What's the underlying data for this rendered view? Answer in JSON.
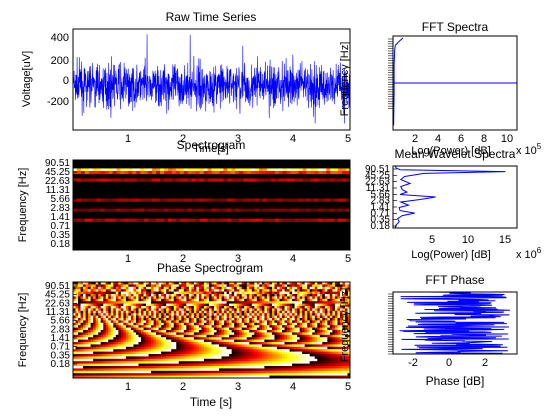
{
  "figure": {
    "panels": {
      "raw": {
        "title": "Raw Time Series",
        "xlabel": "Time[s]",
        "ylabel": "Voltage[uV]",
        "xticks": [
          "1",
          "2",
          "3",
          "4",
          "5"
        ],
        "yticks": [
          "400",
          "200",
          "0",
          "-200"
        ]
      },
      "fft": {
        "title": "FFT Spectra",
        "xlabel": "Log(Power) [dB]",
        "ylabel": "Frequency [Hz]",
        "xticks": [
          "2",
          "4",
          "6",
          "8",
          "10"
        ],
        "exponent": "x 10",
        "exponent_power": "5"
      },
      "spec": {
        "title": "Spectrogram",
        "xlabel": "Time [s]",
        "ylabel": "Frequency [Hz]",
        "xticks": [
          "1",
          "2",
          "3",
          "4",
          "5"
        ],
        "yticks": [
          "90.51",
          "45.25",
          "22.63",
          "11.31",
          "5.66",
          "2.83",
          "1.41",
          "0.71",
          "0.35",
          "0.18"
        ]
      },
      "mwave": {
        "title": "Mean Wavelet Spectra",
        "xlabel": "Log(Power) [dB]",
        "xticks": [
          "5",
          "10",
          "15"
        ],
        "exponent": "x 10",
        "exponent_power": "6",
        "yticks": [
          "90.51",
          "45.25",
          "22.63",
          "11.31",
          "5.66",
          "2.83",
          "1.41",
          "0.71",
          "0.35",
          "0.18"
        ]
      },
      "phase": {
        "title": "Phase Spectrogram",
        "xlabel": "Time [s]",
        "ylabel": "Frequency [Hz]",
        "xticks": [
          "1",
          "2",
          "3",
          "4",
          "5"
        ],
        "yticks": [
          "90.51",
          "45.25",
          "22.63",
          "11.31",
          "5.66",
          "2.83",
          "1.41",
          "0.71",
          "0.35",
          "0.18"
        ]
      },
      "fftphase": {
        "title": "FFT Phase",
        "xlabel": "Phase [dB]",
        "ylabel": "Frequency [Hz]",
        "xticks": [
          "-2",
          "0",
          "2"
        ]
      }
    }
  },
  "chart_data": [
    {
      "type": "line",
      "title": "Raw Time Series",
      "xlabel": "Time[s]",
      "ylabel": "Voltage[uV]",
      "xlim": [
        0,
        5
      ],
      "ylim": [
        -350,
        450
      ],
      "x_ticks": [
        1,
        2,
        3,
        4,
        5
      ],
      "y_ticks": [
        -200,
        0,
        200,
        400
      ],
      "series_color": "#0000ff",
      "signal": {
        "mean": 0,
        "typical_range": [
          -250,
          300
        ],
        "peak_max": 420,
        "peak_min": -300,
        "samples": 1280
      }
    },
    {
      "type": "line",
      "title": "FFT Spectra",
      "xlabel": "Log(Power) [dB]",
      "ylabel": "Frequency [Hz]",
      "xlim": [
        0,
        11
      ],
      "x_ticks": [
        2,
        4,
        6,
        8,
        10
      ],
      "x_exponent": 5,
      "series_color": "#0000ff",
      "profile": [
        [
          0.9,
          0.02
        ],
        [
          0.6,
          0.05
        ],
        [
          0.2,
          0.1
        ],
        [
          0.15,
          0.15
        ],
        [
          0.1,
          0.3
        ],
        [
          0.1,
          0.6
        ],
        [
          0.05,
          0.95
        ]
      ]
    },
    {
      "type": "heatmap",
      "title": "Spectrogram",
      "xlabel": "Time [s]",
      "ylabel": "Frequency [Hz]",
      "xlim": [
        0,
        5
      ],
      "x_ticks": [
        1,
        2,
        3,
        4,
        5
      ],
      "y_ticks": [
        90.51,
        45.25,
        22.63,
        11.31,
        5.66,
        2.83,
        1.41,
        0.71,
        0.35,
        0.18
      ],
      "colormap": "hot",
      "bands": [
        {
          "frequency_hz": 45.25,
          "relative_power": 1.0
        },
        {
          "frequency_hz": 38,
          "relative_power": 0.55
        },
        {
          "frequency_hz": 22.63,
          "relative_power": 0.35
        },
        {
          "frequency_hz": 5.66,
          "relative_power": 0.3
        },
        {
          "frequency_hz": 2.83,
          "relative_power": 0.25
        },
        {
          "frequency_hz": 1.41,
          "relative_power": 0.35
        }
      ]
    },
    {
      "type": "line",
      "title": "Mean Wavelet Spectra",
      "xlabel": "Log(Power) [dB]",
      "xlim": [
        0,
        16
      ],
      "x_ticks": [
        5,
        10,
        15
      ],
      "x_exponent": 6,
      "y_ticks": [
        90.51,
        45.25,
        22.63,
        11.31,
        5.66,
        2.83,
        1.41,
        0.71,
        0.35,
        0.18
      ],
      "series_color": "#0000ff",
      "profile": [
        [
          0.3,
          0.0
        ],
        [
          0.4,
          0.03
        ],
        [
          0.9,
          0.06
        ],
        [
          14.5,
          0.09
        ],
        [
          4.0,
          0.12
        ],
        [
          1.5,
          0.17
        ],
        [
          1.0,
          0.22
        ],
        [
          2.2,
          0.28
        ],
        [
          1.0,
          0.33
        ],
        [
          1.2,
          0.38
        ],
        [
          1.8,
          0.42
        ],
        [
          0.9,
          0.46
        ],
        [
          5.5,
          0.5
        ],
        [
          3.5,
          0.54
        ],
        [
          1.0,
          0.58
        ],
        [
          2.0,
          0.63
        ],
        [
          0.8,
          0.67
        ],
        [
          0.9,
          0.72
        ],
        [
          2.8,
          0.76
        ],
        [
          1.2,
          0.8
        ],
        [
          0.6,
          0.85
        ],
        [
          0.8,
          0.9
        ],
        [
          0.4,
          0.95
        ],
        [
          0.3,
          1.0
        ]
      ]
    },
    {
      "type": "heatmap",
      "title": "Phase Spectrogram",
      "xlabel": "Time [s]",
      "ylabel": "Frequency [Hz]",
      "xlim": [
        0,
        5
      ],
      "x_ticks": [
        1,
        2,
        3,
        4,
        5
      ],
      "y_ticks": [
        90.51,
        45.25,
        22.63,
        11.31,
        5.66,
        2.83,
        1.41,
        0.71,
        0.35,
        0.18
      ],
      "colormap": "hot"
    },
    {
      "type": "line",
      "title": "FFT Phase",
      "xlabel": "Phase [dB]",
      "ylabel": "Frequency [Hz]",
      "xlim": [
        -3.5,
        3.5
      ],
      "x_ticks": [
        -2,
        0,
        2
      ],
      "series_color": "#0000ff",
      "phase_range": [
        -3.14,
        3.14
      ]
    }
  ]
}
